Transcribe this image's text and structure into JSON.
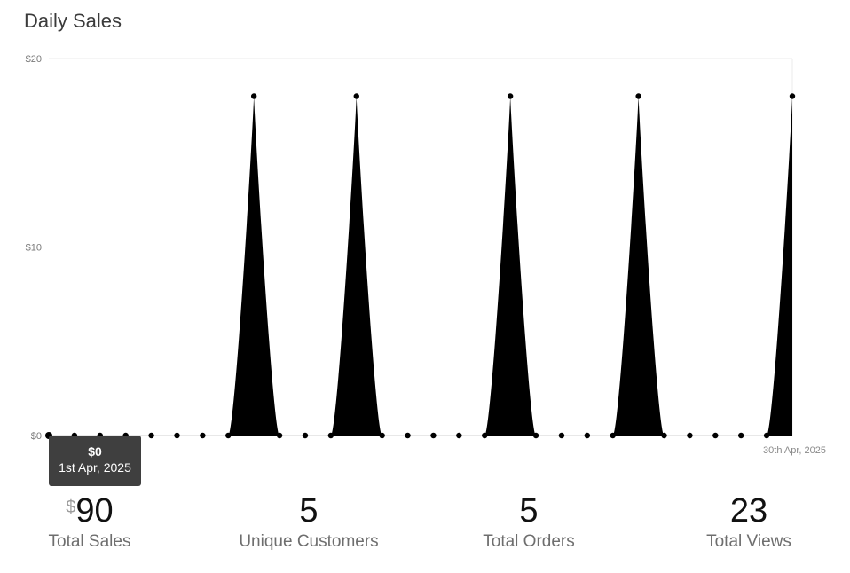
{
  "header": {
    "title": "Daily Sales"
  },
  "chart_data": {
    "type": "area",
    "title": "Daily Sales",
    "xlabel": "",
    "ylabel": "",
    "ylim": [
      0,
      20
    ],
    "y_ticks": [
      "$0",
      "$10",
      "$20"
    ],
    "x_end_label": "30th Apr, 2025",
    "grid": true,
    "series": [
      {
        "values": [
          0,
          0,
          0,
          0,
          0,
          0,
          0,
          0,
          18,
          0,
          0,
          0,
          18,
          0,
          0,
          0,
          0,
          0,
          18,
          0,
          0,
          0,
          0,
          18,
          0,
          0,
          0,
          0,
          0,
          18
        ]
      }
    ],
    "colors": {
      "fill": "#000000",
      "grid": "#ebebeb",
      "axis": "#d0d0d0"
    }
  },
  "tooltip": {
    "value": "$0",
    "date": "1st Apr, 2025"
  },
  "stats": {
    "total_sales": {
      "currency": "$",
      "value": "90",
      "label": "Total Sales"
    },
    "unique_customers": {
      "value": "5",
      "label": "Unique Customers"
    },
    "total_orders": {
      "value": "5",
      "label": "Total Orders"
    },
    "total_views": {
      "value": "23",
      "label": "Total Views"
    }
  }
}
